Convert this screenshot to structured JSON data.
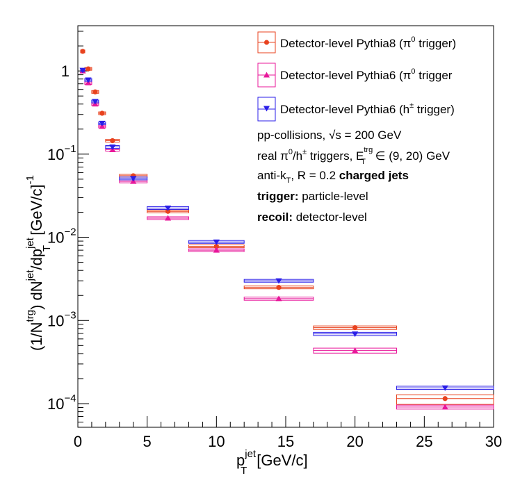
{
  "chart_data": {
    "type": "scatter",
    "xlabel_main": "p",
    "xlabel_sup": "jet",
    "xlabel_sub": "T",
    "xlabel_unit": "[GeV/c]",
    "ylabel_parts": {
      "a": "(1/N",
      "a_sup": "trg",
      "b": ") dN",
      "b_sup": "jet",
      "c": "/dp",
      "c_sup": "jet",
      "c_sub": "T",
      "d": " [GeV/c]",
      "d_sup": "-1"
    },
    "xlim": [
      0,
      30
    ],
    "ylim": [
      5.2e-05,
      3.5
    ],
    "y_scale": "log",
    "x_ticks": [
      0,
      5,
      10,
      15,
      20,
      25,
      30
    ],
    "y_ticks": [
      {
        "value": 1,
        "base": "1",
        "exp": ""
      },
      {
        "value": 0.1,
        "base": "10",
        "exp": "−1"
      },
      {
        "value": 0.01,
        "base": "10",
        "exp": "−2"
      },
      {
        "value": 0.001,
        "base": "10",
        "exp": "−3"
      },
      {
        "value": 0.0001,
        "base": "10",
        "exp": "−4"
      }
    ],
    "grid": false,
    "legend_position": "top-right",
    "series": [
      {
        "name_main": "Detector-level Pythia8 (π",
        "name_sup": "0",
        "name_end": " trigger)",
        "color": "#e8421e",
        "marker": "circle",
        "points": [
          {
            "x": 0.35,
            "y": 1.72,
            "xlo": 0.2,
            "xhi": 0.5,
            "ylo": 1.66,
            "yhi": 1.78
          },
          {
            "x": 0.75,
            "y": 1.06,
            "xlo": 0.5,
            "xhi": 1.0,
            "ylo": 1.02,
            "yhi": 1.1
          },
          {
            "x": 1.25,
            "y": 0.56,
            "xlo": 1.0,
            "xhi": 1.5,
            "ylo": 0.54,
            "yhi": 0.58
          },
          {
            "x": 1.75,
            "y": 0.31,
            "xlo": 1.5,
            "xhi": 2.0,
            "ylo": 0.3,
            "yhi": 0.32
          },
          {
            "x": 2.5,
            "y": 0.145,
            "xlo": 2.0,
            "xhi": 3.0,
            "ylo": 0.141,
            "yhi": 0.149
          },
          {
            "x": 4.0,
            "y": 0.055,
            "xlo": 3.0,
            "xhi": 5.0,
            "ylo": 0.0535,
            "yhi": 0.0565
          },
          {
            "x": 6.5,
            "y": 0.0205,
            "xlo": 5.0,
            "xhi": 8.0,
            "ylo": 0.0199,
            "yhi": 0.0211
          },
          {
            "x": 10.0,
            "y": 0.0078,
            "xlo": 8.0,
            "xhi": 12.0,
            "ylo": 0.0076,
            "yhi": 0.008
          },
          {
            "x": 14.5,
            "y": 0.0025,
            "xlo": 12.0,
            "xhi": 17.0,
            "ylo": 0.00242,
            "yhi": 0.00258
          },
          {
            "x": 20.0,
            "y": 0.00082,
            "xlo": 17.0,
            "xhi": 23.0,
            "ylo": 0.00078,
            "yhi": 0.00086
          },
          {
            "x": 26.5,
            "y": 0.000115,
            "xlo": 23.0,
            "xhi": 30.0,
            "ylo": 9.8e-05,
            "yhi": 0.000128
          }
        ]
      },
      {
        "name_main": "Detector-level Pythia6 (π",
        "name_sup": "0",
        "name_end": " trigger",
        "color": "#e8179a",
        "marker": "triangle-up",
        "points": [
          {
            "x": 0.35,
            "y": 1.0,
            "xlo": 0.2,
            "xhi": 0.5,
            "ylo": 0.97,
            "yhi": 1.03
          },
          {
            "x": 0.75,
            "y": 0.72,
            "xlo": 0.5,
            "xhi": 1.0,
            "ylo": 0.69,
            "yhi": 0.75
          },
          {
            "x": 1.25,
            "y": 0.4,
            "xlo": 1.0,
            "xhi": 1.5,
            "ylo": 0.385,
            "yhi": 0.415
          },
          {
            "x": 1.75,
            "y": 0.215,
            "xlo": 1.5,
            "xhi": 2.0,
            "ylo": 0.207,
            "yhi": 0.223
          },
          {
            "x": 2.5,
            "y": 0.113,
            "xlo": 2.0,
            "xhi": 3.0,
            "ylo": 0.109,
            "yhi": 0.117
          },
          {
            "x": 4.0,
            "y": 0.047,
            "xlo": 3.0,
            "xhi": 5.0,
            "ylo": 0.0455,
            "yhi": 0.0485
          },
          {
            "x": 6.5,
            "y": 0.017,
            "xlo": 5.0,
            "xhi": 8.0,
            "ylo": 0.0164,
            "yhi": 0.0176
          },
          {
            "x": 10.0,
            "y": 0.007,
            "xlo": 8.0,
            "xhi": 12.0,
            "ylo": 0.0068,
            "yhi": 0.0072
          },
          {
            "x": 14.5,
            "y": 0.00183,
            "xlo": 12.0,
            "xhi": 17.0,
            "ylo": 0.00175,
            "yhi": 0.00191
          },
          {
            "x": 20.0,
            "y": 0.000435,
            "xlo": 17.0,
            "xhi": 23.0,
            "ylo": 0.000405,
            "yhi": 0.000465
          },
          {
            "x": 26.5,
            "y": 9.1e-05,
            "xlo": 23.0,
            "xhi": 30.0,
            "ylo": 8.6e-05,
            "yhi": 9.6e-05
          }
        ]
      },
      {
        "name_main": "Detector-level Pythia6 (h",
        "name_sup": "±",
        "name_end": " trigger)",
        "color": "#2a1ee8",
        "marker": "triangle-down",
        "points": [
          {
            "x": 0.35,
            "y": 1.02,
            "xlo": 0.2,
            "xhi": 0.5,
            "ylo": 0.99,
            "yhi": 1.05
          },
          {
            "x": 0.75,
            "y": 0.78,
            "xlo": 0.5,
            "xhi": 1.0,
            "ylo": 0.75,
            "yhi": 0.81
          },
          {
            "x": 1.25,
            "y": 0.43,
            "xlo": 1.0,
            "xhi": 1.5,
            "ylo": 0.415,
            "yhi": 0.445
          },
          {
            "x": 1.75,
            "y": 0.235,
            "xlo": 1.5,
            "xhi": 2.0,
            "ylo": 0.227,
            "yhi": 0.243
          },
          {
            "x": 2.5,
            "y": 0.122,
            "xlo": 2.0,
            "xhi": 3.0,
            "ylo": 0.118,
            "yhi": 0.126
          },
          {
            "x": 4.0,
            "y": 0.051,
            "xlo": 3.0,
            "xhi": 5.0,
            "ylo": 0.0494,
            "yhi": 0.0526
          },
          {
            "x": 6.5,
            "y": 0.0225,
            "xlo": 5.0,
            "xhi": 8.0,
            "ylo": 0.0218,
            "yhi": 0.0232
          },
          {
            "x": 10.0,
            "y": 0.0088,
            "xlo": 8.0,
            "xhi": 12.0,
            "ylo": 0.0085,
            "yhi": 0.0091
          },
          {
            "x": 14.5,
            "y": 0.003,
            "xlo": 12.0,
            "xhi": 17.0,
            "ylo": 0.00291,
            "yhi": 0.00309
          },
          {
            "x": 20.0,
            "y": 0.00069,
            "xlo": 17.0,
            "xhi": 23.0,
            "ylo": 0.00066,
            "yhi": 0.00072
          },
          {
            "x": 26.5,
            "y": 0.000155,
            "xlo": 23.0,
            "xhi": 30.0,
            "ylo": 0.000148,
            "yhi": 0.000162
          }
        ]
      }
    ],
    "annotations": {
      "line1_a": "pp-collisions, √s = 200 GeV",
      "line2_a": "real π",
      "line2_sup1": "0",
      "line2_b": "/h",
      "line2_sup2": "±",
      "line2_c": " triggers, E",
      "line2_sup3": "trg",
      "line2_sub3": "T",
      "line2_d": " ∈ (9, 20) GeV",
      "line3_a": "anti-k",
      "line3_sub": "T",
      "line3_b": ", R = 0.2 ",
      "line3_bold": "charged jets",
      "line4_bold": "trigger:",
      "line4_rest": " particle-level",
      "line5_bold": "recoil:",
      "line5_rest": " detector-level"
    }
  }
}
